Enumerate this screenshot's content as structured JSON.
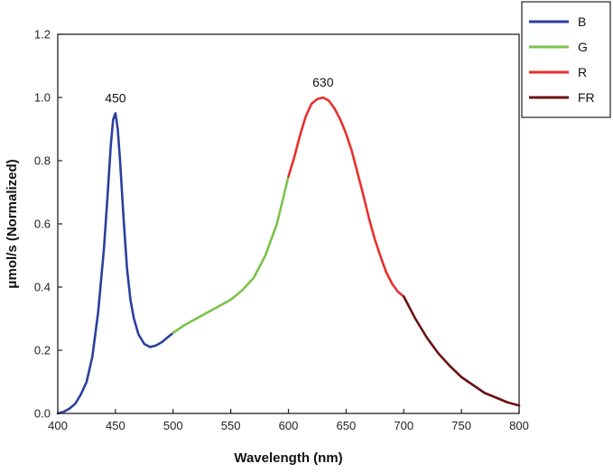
{
  "chart_data": {
    "type": "line",
    "xlabel": "Wavelength (nm)",
    "ylabel": "μmol/s (Normalized)",
    "xlim": [
      400,
      800
    ],
    "ylim": [
      0.0,
      1.2
    ],
    "x_ticks": [
      "400",
      "450",
      "500",
      "550",
      "600",
      "650",
      "700",
      "750",
      "800"
    ],
    "y_ticks": [
      "0.0",
      "0.2",
      "0.4",
      "0.6",
      "0.8",
      "1.0",
      "1.2"
    ],
    "grid": false,
    "legend_position": "top-right, outside plot",
    "annotations": [
      {
        "text": "450",
        "x": 450,
        "y": 0.95
      },
      {
        "text": "630",
        "x": 630,
        "y": 1.0
      }
    ],
    "series": [
      {
        "name": "B",
        "color": "#2b3f9e",
        "x": [
          400,
          405,
          410,
          415,
          420,
          425,
          430,
          435,
          440,
          443,
          446,
          448,
          450,
          452,
          454,
          457,
          460,
          463,
          466,
          470,
          475,
          480,
          485,
          490,
          495,
          500
        ],
        "y": [
          0.0,
          0.005,
          0.015,
          0.03,
          0.06,
          0.1,
          0.18,
          0.32,
          0.52,
          0.68,
          0.85,
          0.93,
          0.95,
          0.9,
          0.8,
          0.62,
          0.46,
          0.36,
          0.3,
          0.25,
          0.22,
          0.21,
          0.215,
          0.225,
          0.24,
          0.255
        ]
      },
      {
        "name": "G",
        "color": "#7cc24a",
        "x": [
          500,
          510,
          520,
          530,
          540,
          550,
          560,
          570,
          580,
          590,
          600
        ],
        "y": [
          0.255,
          0.28,
          0.3,
          0.32,
          0.34,
          0.36,
          0.39,
          0.43,
          0.5,
          0.6,
          0.75
        ]
      },
      {
        "name": "R",
        "color": "#e8302d",
        "x": [
          600,
          605,
          610,
          615,
          620,
          625,
          630,
          635,
          640,
          645,
          650,
          655,
          660,
          665,
          670,
          675,
          680,
          685,
          690,
          695,
          700
        ],
        "y": [
          0.75,
          0.81,
          0.88,
          0.94,
          0.98,
          0.995,
          1.0,
          0.99,
          0.965,
          0.93,
          0.885,
          0.83,
          0.76,
          0.69,
          0.615,
          0.55,
          0.495,
          0.445,
          0.41,
          0.385,
          0.37
        ]
      },
      {
        "name": "FR",
        "color": "#6b1212",
        "x": [
          700,
          710,
          720,
          730,
          740,
          750,
          760,
          770,
          780,
          790,
          800
        ],
        "y": [
          0.37,
          0.3,
          0.24,
          0.19,
          0.15,
          0.115,
          0.09,
          0.065,
          0.05,
          0.035,
          0.025
        ]
      }
    ]
  }
}
